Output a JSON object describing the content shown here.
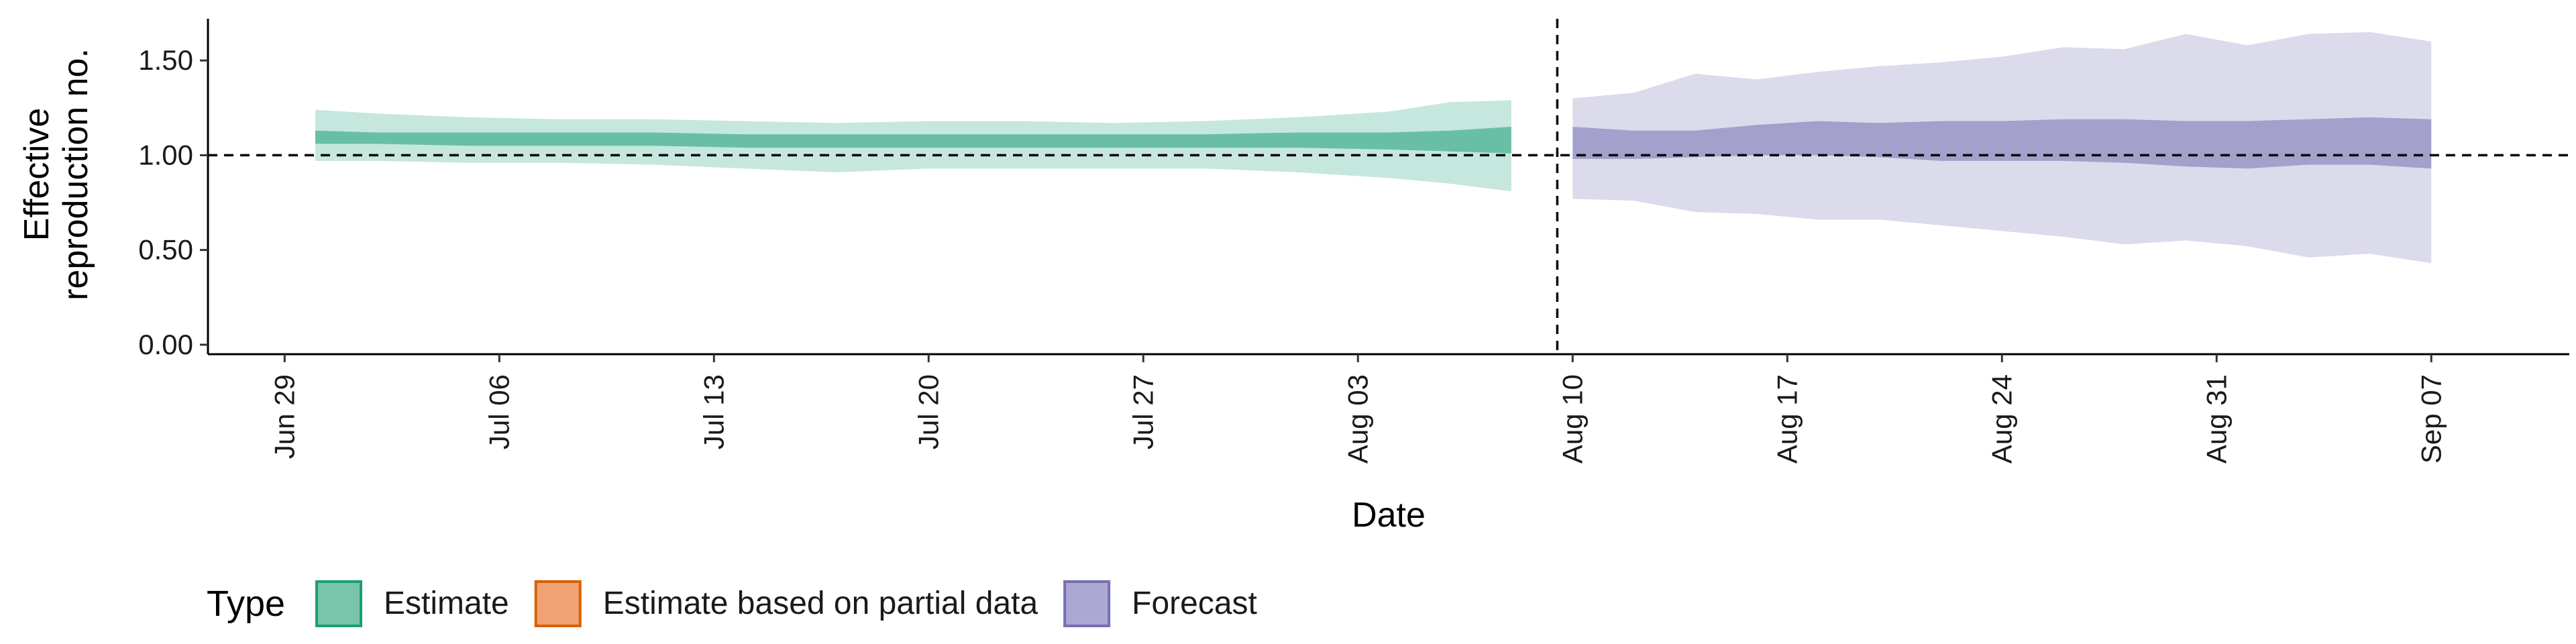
{
  "chart_data": {
    "type": "area",
    "xlabel": "Date",
    "ylabel_lines": [
      "Effective",
      "reproduction no."
    ],
    "ylim": [
      -0.05,
      1.72
    ],
    "y_ticks": [
      0.0,
      0.5,
      1.0,
      1.5
    ],
    "y_tick_labels": [
      "0.00",
      "0.50",
      "1.00",
      "1.50"
    ],
    "x_range_days": [
      -2.5,
      74.5
    ],
    "x_ticks": [
      {
        "day": 0,
        "label": "Jun 29"
      },
      {
        "day": 7,
        "label": "Jul 06"
      },
      {
        "day": 14,
        "label": "Jul 13"
      },
      {
        "day": 21,
        "label": "Jul 20"
      },
      {
        "day": 28,
        "label": "Jul 27"
      },
      {
        "day": 35,
        "label": "Aug 03"
      },
      {
        "day": 42,
        "label": "Aug 10"
      },
      {
        "day": 49,
        "label": "Aug 17"
      },
      {
        "day": 56,
        "label": "Aug 24"
      },
      {
        "day": 63,
        "label": "Aug 31"
      },
      {
        "day": 70,
        "label": "Sep 07"
      }
    ],
    "hline_y": 1.0,
    "vline_day": 41.5,
    "series": [
      {
        "name": "Estimate",
        "color": "#1b9e77",
        "days": [
          1,
          3,
          6,
          9,
          12,
          15,
          18,
          21,
          24,
          27,
          30,
          33,
          36,
          38,
          40
        ],
        "outer_upper": [
          1.24,
          1.22,
          1.2,
          1.19,
          1.19,
          1.18,
          1.17,
          1.18,
          1.18,
          1.17,
          1.18,
          1.2,
          1.23,
          1.28,
          1.29
        ],
        "outer_lower": [
          0.97,
          0.97,
          0.96,
          0.96,
          0.95,
          0.93,
          0.91,
          0.93,
          0.93,
          0.93,
          0.93,
          0.91,
          0.88,
          0.85,
          0.81
        ],
        "inner_upper": [
          1.13,
          1.12,
          1.12,
          1.12,
          1.12,
          1.11,
          1.11,
          1.11,
          1.11,
          1.11,
          1.11,
          1.12,
          1.12,
          1.13,
          1.15
        ],
        "inner_lower": [
          1.06,
          1.06,
          1.05,
          1.05,
          1.05,
          1.04,
          1.04,
          1.04,
          1.04,
          1.04,
          1.04,
          1.04,
          1.03,
          1.02,
          1.01
        ]
      },
      {
        "name": "Forecast",
        "color": "#7570b3",
        "days": [
          42,
          44,
          46,
          48,
          50,
          52,
          54,
          56,
          58,
          60,
          62,
          64,
          66,
          68,
          70
        ],
        "outer_upper": [
          1.3,
          1.33,
          1.43,
          1.4,
          1.44,
          1.47,
          1.49,
          1.52,
          1.57,
          1.56,
          1.64,
          1.58,
          1.64,
          1.65,
          1.6
        ],
        "outer_lower": [
          0.77,
          0.76,
          0.7,
          0.69,
          0.66,
          0.66,
          0.63,
          0.6,
          0.57,
          0.53,
          0.55,
          0.52,
          0.46,
          0.48,
          0.43
        ],
        "inner_upper": [
          1.15,
          1.13,
          1.13,
          1.16,
          1.18,
          1.17,
          1.18,
          1.18,
          1.19,
          1.19,
          1.18,
          1.18,
          1.19,
          1.2,
          1.19
        ],
        "inner_lower": [
          0.98,
          0.98,
          0.99,
          1.0,
          1.0,
          0.99,
          0.97,
          0.97,
          0.97,
          0.96,
          0.94,
          0.93,
          0.95,
          0.95,
          0.93
        ]
      }
    ],
    "legend": {
      "title": "Type",
      "position": "bottom-left",
      "items": [
        {
          "label": "Estimate",
          "fill": "#78c5ab",
          "stroke": "#1b9e77"
        },
        {
          "label": "Estimate based on partial data",
          "fill": "#f0a274",
          "stroke": "#d95f02"
        },
        {
          "label": "Forecast",
          "fill": "#aba8d3",
          "stroke": "#7570b3"
        }
      ]
    }
  }
}
